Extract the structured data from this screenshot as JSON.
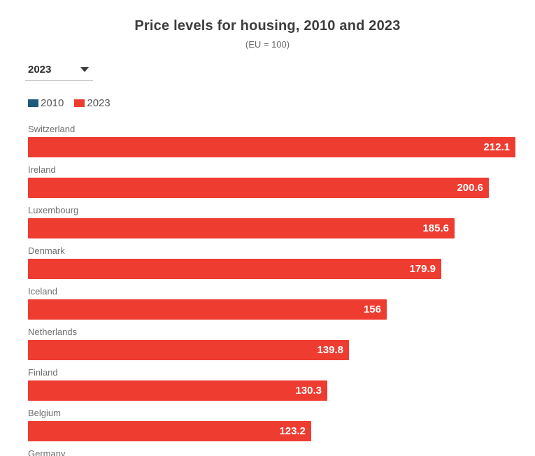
{
  "controls": {
    "year_dropdown": {
      "selected": "2023"
    }
  },
  "legend": {
    "items": [
      {
        "label": "2010",
        "color": "#1d5c7d"
      },
      {
        "label": "2023",
        "color": "#ee3c31"
      }
    ]
  },
  "chart_data": {
    "type": "bar",
    "orientation": "horizontal",
    "title": "Price levels for housing, 2010 and 2023",
    "subtitle": "(EU = 100)",
    "categories": [
      "Switzerland",
      "Ireland",
      "Luxembourg",
      "Denmark",
      "Iceland",
      "Netherlands",
      "Finland",
      "Belgium",
      "Germany"
    ],
    "series": [
      {
        "name": "2023",
        "color": "#ee3c31",
        "values": [
          212.1,
          200.6,
          185.6,
          179.9,
          156,
          139.8,
          130.3,
          123.2,
          null
        ],
        "value_labels": [
          "212.1",
          "200.6",
          "185.6",
          "179.9",
          "156",
          "139.8",
          "130.3",
          "123.2",
          ""
        ]
      }
    ],
    "xlim": [
      0,
      212.1
    ],
    "grid": false,
    "legend_position": "top-left",
    "value_labels_inside_bars": true
  }
}
